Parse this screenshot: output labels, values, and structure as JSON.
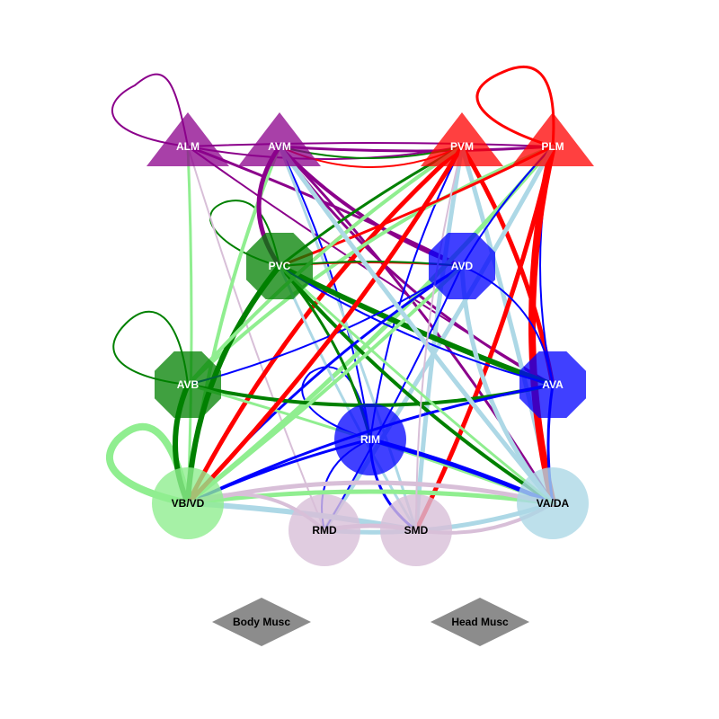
{
  "colors": {
    "sensory": "#8b008b",
    "motor_red": "#ff0000",
    "command_green": "#008000",
    "light_green": "#90ee90",
    "blue": "#0000ff",
    "light_blue": "#add8e6",
    "thistle": "#d8bfd8",
    "gray": "#8c8c8c"
  },
  "nodes": [
    {
      "id": "ALM",
      "label": "ALM",
      "shape": "triangle",
      "fill": "#8b008b",
      "text": "#ffffff"
    },
    {
      "id": "AVM",
      "label": "AVM",
      "shape": "triangle",
      "fill": "#8b008b",
      "text": "#ffffff"
    },
    {
      "id": "PVM",
      "label": "PVM",
      "shape": "triangle",
      "fill": "#ff0000",
      "text": "#ffffff"
    },
    {
      "id": "PLM",
      "label": "PLM",
      "shape": "triangle",
      "fill": "#ff0000",
      "text": "#ffffff"
    },
    {
      "id": "PVC",
      "label": "PVC",
      "shape": "octagon",
      "fill": "#008000",
      "text": "#ffffff"
    },
    {
      "id": "AVD",
      "label": "AVD",
      "shape": "octagon",
      "fill": "#0000ff",
      "text": "#ffffff"
    },
    {
      "id": "AVB",
      "label": "AVB",
      "shape": "octagon",
      "fill": "#008000",
      "text": "#ffffff"
    },
    {
      "id": "AVA",
      "label": "AVA",
      "shape": "octagon",
      "fill": "#0000ff",
      "text": "#ffffff"
    },
    {
      "id": "RIM",
      "label": "RIM",
      "shape": "circle",
      "fill": "#0000ff",
      "text": "#ffffff"
    },
    {
      "id": "VBVD",
      "label": "VB/VD",
      "shape": "circle",
      "fill": "#90ee90",
      "text": "#000000"
    },
    {
      "id": "VADA",
      "label": "VA/DA",
      "shape": "circle",
      "fill": "#add8e6",
      "text": "#000000"
    },
    {
      "id": "RMD",
      "label": "RMD",
      "shape": "circle",
      "fill": "#d8bfd8",
      "text": "#000000"
    },
    {
      "id": "SMD",
      "label": "SMD",
      "shape": "circle",
      "fill": "#d8bfd8",
      "text": "#000000"
    },
    {
      "id": "BODY",
      "label": "Body Musc",
      "shape": "diamond",
      "fill": "#8c8c8c",
      "text": "#000000"
    },
    {
      "id": "HEAD",
      "label": "Head Musc",
      "shape": "diamond",
      "fill": "#8c8c8c",
      "text": "#000000"
    }
  ],
  "edges": [
    {
      "from": "ALM",
      "to": "ALM",
      "color": "#8b008b",
      "weight": 2
    },
    {
      "from": "PLM",
      "to": "PLM",
      "color": "#ff0000",
      "weight": 3
    },
    {
      "from": "PVC",
      "to": "PVC",
      "color": "#008000",
      "weight": 2
    },
    {
      "from": "AVB",
      "to": "AVB",
      "color": "#008000",
      "weight": 2
    },
    {
      "from": "VBVD",
      "to": "VBVD",
      "color": "#90ee90",
      "weight": 8
    },
    {
      "from": "RIM",
      "to": "RIM",
      "color": "#0000ff",
      "weight": 2
    },
    {
      "from": "ALM",
      "to": "PLM",
      "color": "#8b008b",
      "weight": 2
    },
    {
      "from": "AVM",
      "to": "PLM",
      "color": "#8b008b",
      "weight": 3
    },
    {
      "from": "ALM",
      "to": "PVM",
      "color": "#8b008b",
      "weight": 2
    },
    {
      "from": "AVM",
      "to": "PVM",
      "color": "#ff0000",
      "weight": 2
    },
    {
      "from": "PVM",
      "to": "AVM",
      "color": "#008000",
      "weight": 2
    },
    {
      "from": "ALM",
      "to": "AVD",
      "color": "#8b008b",
      "weight": 3
    },
    {
      "from": "ALM",
      "to": "AVA",
      "color": "#8b008b",
      "weight": 2
    },
    {
      "from": "AVM",
      "to": "AVD",
      "color": "#8b008b",
      "weight": 4
    },
    {
      "from": "AVM",
      "to": "AVA",
      "color": "#8b008b",
      "weight": 3
    },
    {
      "from": "AVM",
      "to": "VADA",
      "color": "#8b008b",
      "weight": 3
    },
    {
      "from": "ALM",
      "to": "VBVD",
      "color": "#90ee90",
      "weight": 3
    },
    {
      "from": "ALM",
      "to": "RMD",
      "color": "#d8bfd8",
      "weight": 2
    },
    {
      "from": "AVM",
      "to": "VBVD",
      "color": "#90ee90",
      "weight": 4
    },
    {
      "from": "AVM",
      "to": "PVC",
      "color": "#8b008b",
      "weight": 5
    },
    {
      "from": "AVM",
      "to": "RIM",
      "color": "#0000ff",
      "weight": 2
    },
    {
      "from": "AVM",
      "to": "SMD",
      "color": "#add8e6",
      "weight": 3
    },
    {
      "from": "PVM",
      "to": "PVC",
      "color": "#008000",
      "weight": 3
    },
    {
      "from": "PVM",
      "to": "AVB",
      "color": "#ff0000",
      "weight": 2
    },
    {
      "from": "PVM",
      "to": "VBVD",
      "color": "#ff0000",
      "weight": 5
    },
    {
      "from": "PVM",
      "to": "AVA",
      "color": "#ff0000",
      "weight": 5
    },
    {
      "from": "PVM",
      "to": "VADA",
      "color": "#add8e6",
      "weight": 5
    },
    {
      "from": "PVM",
      "to": "SMD",
      "color": "#add8e6",
      "weight": 5
    },
    {
      "from": "PVM",
      "to": "RIM",
      "color": "#0000ff",
      "weight": 2
    },
    {
      "from": "PLM",
      "to": "AVB",
      "color": "#90ee90",
      "weight": 4
    },
    {
      "from": "PLM",
      "to": "VBVD",
      "color": "#90ee90",
      "weight": 5
    },
    {
      "from": "PLM",
      "to": "PVC",
      "color": "#ff0000",
      "weight": 3
    },
    {
      "from": "PLM",
      "to": "AVD",
      "color": "#0000ff",
      "weight": 2
    },
    {
      "from": "PLM",
      "to": "AVA",
      "color": "#0000ff",
      "weight": 2
    },
    {
      "from": "PLM",
      "to": "VADA",
      "color": "#ff0000",
      "weight": 8
    },
    {
      "from": "PLM",
      "to": "SMD",
      "color": "#ff0000",
      "weight": 5
    },
    {
      "from": "PLM",
      "to": "RMD",
      "color": "#add8e6",
      "weight": 5
    },
    {
      "from": "PVC",
      "to": "AVA",
      "color": "#008000",
      "weight": 6
    },
    {
      "from": "PVC",
      "to": "VADA",
      "color": "#008000",
      "weight": 4
    },
    {
      "from": "PVC",
      "to": "VBVD",
      "color": "#008000",
      "weight": 6
    },
    {
      "from": "PVC",
      "to": "RIM",
      "color": "#008000",
      "weight": 3
    },
    {
      "from": "PVC",
      "to": "AVD",
      "color": "#ff0000",
      "weight": 2
    },
    {
      "from": "PVC",
      "to": "SMD",
      "color": "#add8e6",
      "weight": 3
    },
    {
      "from": "AVD",
      "to": "VBVD",
      "color": "#0000ff",
      "weight": 3
    },
    {
      "from": "AVD",
      "to": "VADA",
      "color": "#add8e6",
      "weight": 5
    },
    {
      "from": "AVD",
      "to": "AVB",
      "color": "#0000ff",
      "weight": 2
    },
    {
      "from": "AVD",
      "to": "RMD",
      "color": "#0000ff",
      "weight": 2
    },
    {
      "from": "AVD",
      "to": "PVC",
      "color": "#008000",
      "weight": 2
    },
    {
      "from": "AVB",
      "to": "VBVD",
      "color": "#008000",
      "weight": 6
    },
    {
      "from": "AVB",
      "to": "AVA",
      "color": "#008000",
      "weight": 4
    },
    {
      "from": "AVB",
      "to": "PVM",
      "color": "#90ee90",
      "weight": 4
    },
    {
      "from": "AVB",
      "to": "VADA",
      "color": "#90ee90",
      "weight": 3
    },
    {
      "from": "AVA",
      "to": "VADA",
      "color": "#0000ff",
      "weight": 3
    },
    {
      "from": "AVA",
      "to": "VBVD",
      "color": "#0000ff",
      "weight": 3
    },
    {
      "from": "AVA",
      "to": "AVD",
      "color": "#0000ff",
      "weight": 2
    },
    {
      "from": "AVA",
      "to": "PVC",
      "color": "#0000ff",
      "weight": 2
    },
    {
      "from": "RIM",
      "to": "VADA",
      "color": "#0000ff",
      "weight": 5
    },
    {
      "from": "RIM",
      "to": "VBVD",
      "color": "#0000ff",
      "weight": 3
    },
    {
      "from": "RIM",
      "to": "SMD",
      "color": "#0000ff",
      "weight": 3
    },
    {
      "from": "RIM",
      "to": "RMD",
      "color": "#0000ff",
      "weight": 2
    },
    {
      "from": "VBVD",
      "to": "VADA",
      "color": "#90ee90",
      "weight": 5
    },
    {
      "from": "VBVD",
      "to": "SMD",
      "color": "#add8e6",
      "weight": 6
    },
    {
      "from": "VBVD",
      "to": "AVD",
      "color": "#90ee90",
      "weight": 4
    },
    {
      "from": "VBVD",
      "to": "PVM",
      "color": "#ff0000",
      "weight": 5
    },
    {
      "from": "VADA",
      "to": "VBVD",
      "color": "#d8bfd8",
      "weight": 5
    },
    {
      "from": "VADA",
      "to": "RMD",
      "color": "#add8e6",
      "weight": 5
    },
    {
      "from": "VADA",
      "to": "AVM",
      "color": "#add8e6",
      "weight": 5
    },
    {
      "from": "SMD",
      "to": "RMD",
      "color": "#d8bfd8",
      "weight": 5
    },
    {
      "from": "SMD",
      "to": "VADA",
      "color": "#d8bfd8",
      "weight": 4
    },
    {
      "from": "RMD",
      "to": "VBVD",
      "color": "#d8bfd8",
      "weight": 4
    },
    {
      "from": "SMD",
      "to": "PVM",
      "color": "#d8bfd8",
      "weight": 2
    },
    {
      "from": "VADA",
      "to": "PVC",
      "color": "#90ee90",
      "weight": 3
    }
  ]
}
